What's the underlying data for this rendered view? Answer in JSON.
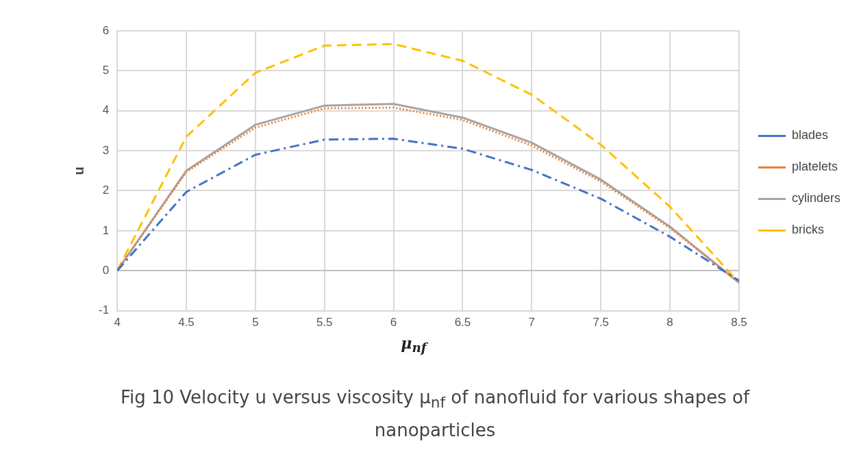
{
  "chart_data": {
    "type": "line",
    "xlabel": "μ$_{nf}$",
    "ylabel": "u",
    "x": [
      4,
      4.5,
      5,
      5.5,
      6,
      6.5,
      7,
      7.5,
      8,
      8.5
    ],
    "series": [
      {
        "name": "blades",
        "color": "#4472c4",
        "line_style": "dashdot",
        "values": [
          0,
          1.97,
          2.9,
          3.28,
          3.3,
          3.05,
          2.52,
          1.8,
          0.85,
          -0.25
        ]
      },
      {
        "name": "platelets",
        "color": "#ed7d31",
        "line_style": "dotted",
        "values": [
          0,
          2.47,
          3.58,
          4.06,
          4.08,
          3.77,
          3.13,
          2.23,
          1.07,
          -0.3
        ]
      },
      {
        "name": "cylinders",
        "color": "#a5a5a5",
        "line_style": "solid",
        "values": [
          0,
          2.5,
          3.65,
          4.13,
          4.17,
          3.83,
          3.2,
          2.28,
          1.1,
          -0.3
        ]
      },
      {
        "name": "bricks",
        "color": "#ffc000",
        "line_style": "dashed",
        "values": [
          0,
          3.35,
          4.95,
          5.63,
          5.67,
          5.25,
          4.4,
          3.15,
          1.6,
          -0.3
        ]
      }
    ],
    "xlim": [
      4,
      8.5
    ],
    "xticks": [
      4,
      4.5,
      5,
      5.5,
      6,
      6.5,
      7,
      7.5,
      8,
      8.5
    ],
    "ylim": [
      -1,
      6
    ],
    "yticks": [
      -1,
      0,
      1,
      2,
      3,
      4,
      5,
      6
    ],
    "grid": true,
    "legend": "right",
    "marker": "none",
    "annotations": [
      "Fig 10 Velocity u versus viscosity μ$_{nf}$ of nanofluid for various shapes of nanoparticles"
    ]
  }
}
